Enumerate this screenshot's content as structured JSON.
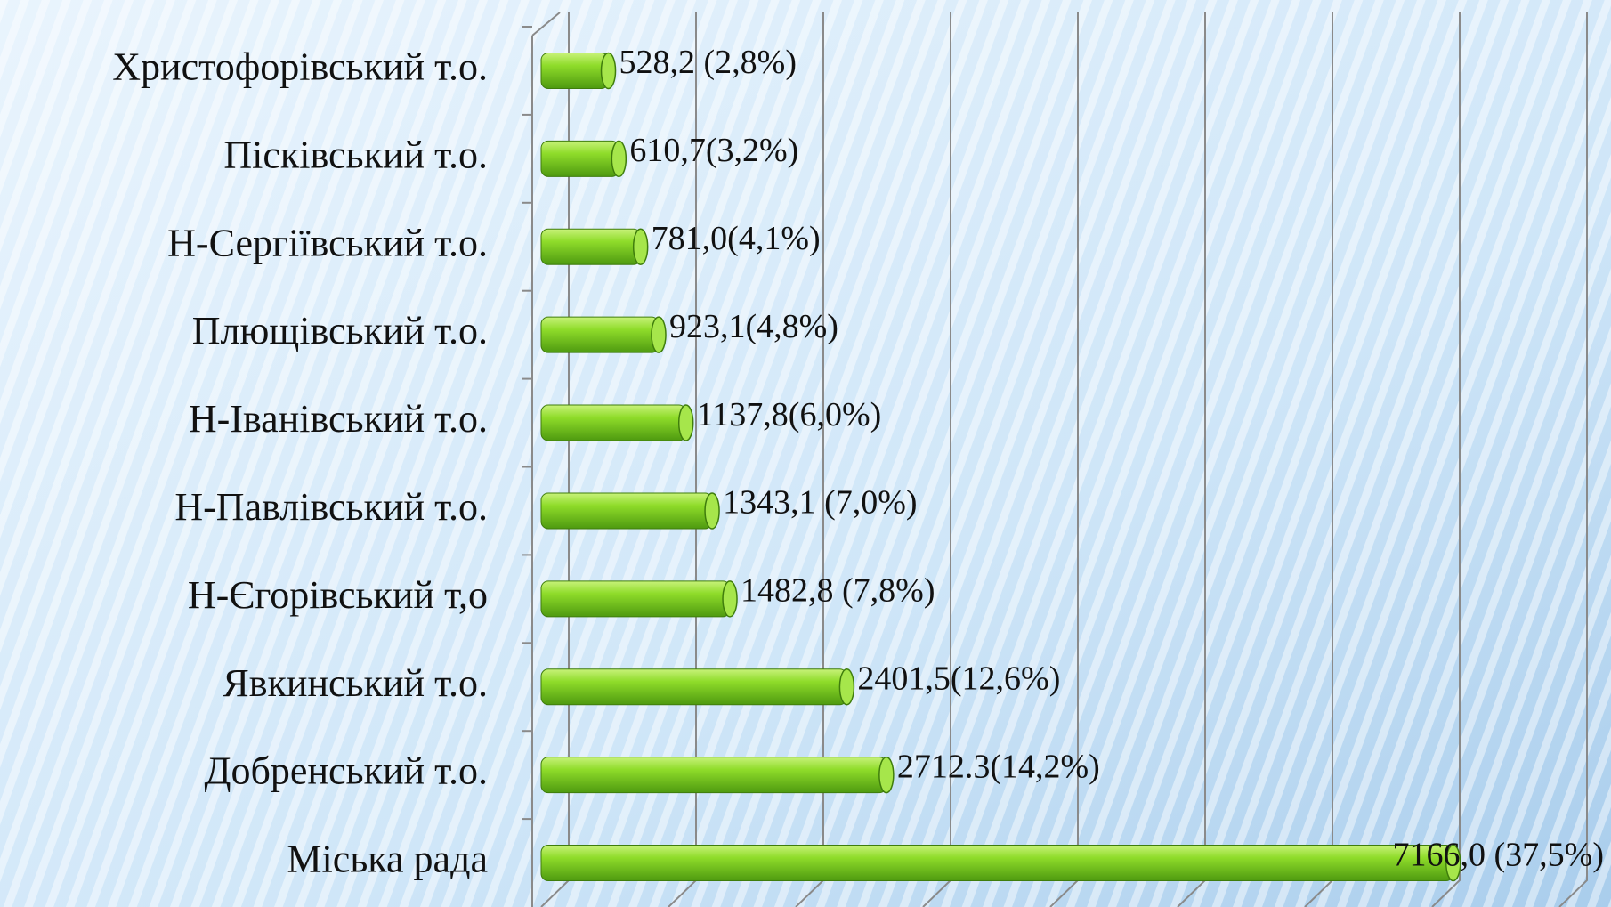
{
  "chart_data": {
    "type": "bar",
    "orientation": "horizontal",
    "categories": [
      "Христофорівський т.о.",
      "Пісківський т.о.",
      "Н-Сергіївський т.о.",
      "Плющівський т.о.",
      "Н-Іванівський т.о.",
      "Н-Павлівський т.о.",
      "Н-Єгорівський т,о",
      "Явкинський т.о.",
      "Добренський т.о.",
      "Міська рада"
    ],
    "values": [
      528.2,
      610.7,
      781.0,
      923.1,
      1137.8,
      1343.1,
      1482.8,
      2401.5,
      2712.3,
      7166.0
    ],
    "value_labels": [
      "528,2 (2,8%)",
      "610,7(3,2%)",
      "781,0(4,1%)",
      "923,1(4,8%)",
      "1137,8(6,0%)",
      "1343,1 (7,0%)",
      "1482,8 (7,8%)",
      "2401,5(12,6%)",
      "2712.3(14,2%)",
      "7166,0 (37,5%)"
    ],
    "color": "#7ed321",
    "xlim": [
      0,
      8000
    ],
    "xticks": [
      0,
      1000,
      2000,
      3000,
      4000,
      5000,
      6000,
      7000,
      8000
    ],
    "grid": true
  }
}
